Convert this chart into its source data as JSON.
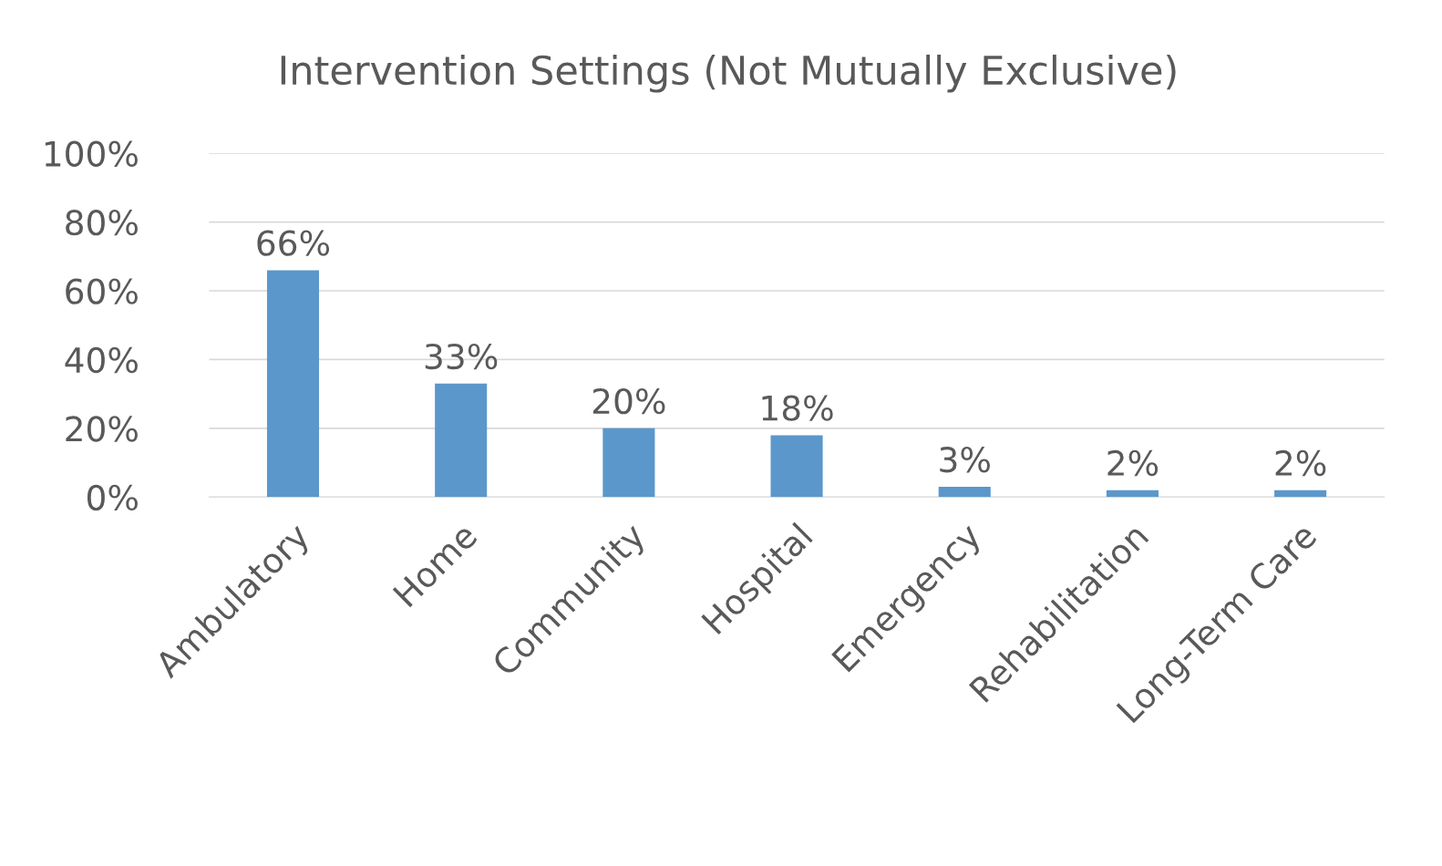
{
  "chart_data": {
    "type": "bar",
    "title": "Intervention Settings (Not Mutually Exclusive)",
    "categories": [
      "Ambulatory",
      "Home",
      "Community",
      "Hospital",
      "Emergency",
      "Rehabilitation",
      "Long-Term Care"
    ],
    "values": [
      66,
      33,
      20,
      18,
      3,
      2,
      2
    ],
    "value_labels": [
      "66%",
      "33%",
      "20%",
      "18%",
      "3%",
      "2%",
      "2%"
    ],
    "color": "#5b97cb",
    "ylim": [
      0,
      100
    ],
    "yticks": [
      {
        "value": 0,
        "label": "0%"
      },
      {
        "value": 20,
        "label": "20%"
      },
      {
        "value": 40,
        "label": "40%"
      },
      {
        "value": 60,
        "label": "60%"
      },
      {
        "value": 80,
        "label": "80%"
      },
      {
        "value": 100,
        "label": "100%"
      }
    ],
    "grid": "y"
  }
}
